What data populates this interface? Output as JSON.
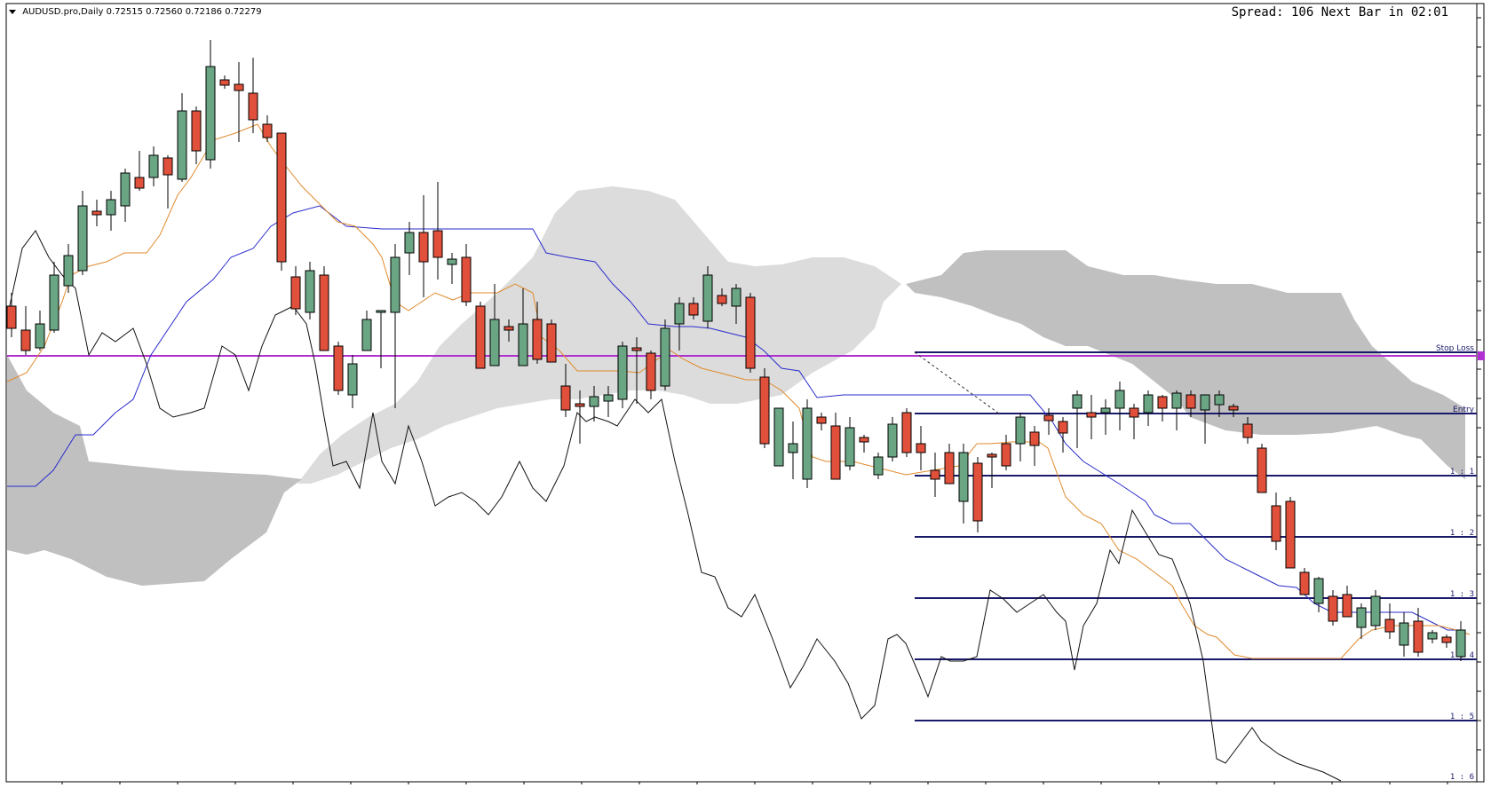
{
  "header": {
    "symbol": "AUDUSD.pro,Daily",
    "ohlc": "0.72515 0.72560 0.72186 0.72279",
    "spread_text": "Spread: 106 Next Bar in 02:01"
  },
  "levels": {
    "stop_loss": "Stop Loss",
    "entry": "Entry",
    "r1": "1 : 1",
    "r2": "1 : 2",
    "r3": "1 : 3",
    "r4": "1 : 4",
    "r5": "1 : 5",
    "r6": "1 : 6"
  },
  "colors": {
    "bull": "#6aa584",
    "bear": "#e0503a",
    "tenkan": "#e08a2c",
    "kijun": "#2b2bcc",
    "chikou": "#111111",
    "cloud_light": "#dcdcdc",
    "cloud_dark": "#c0c0c0",
    "level_line": "#1a1a6a",
    "horizontal_line": "#b030d0"
  }
}
